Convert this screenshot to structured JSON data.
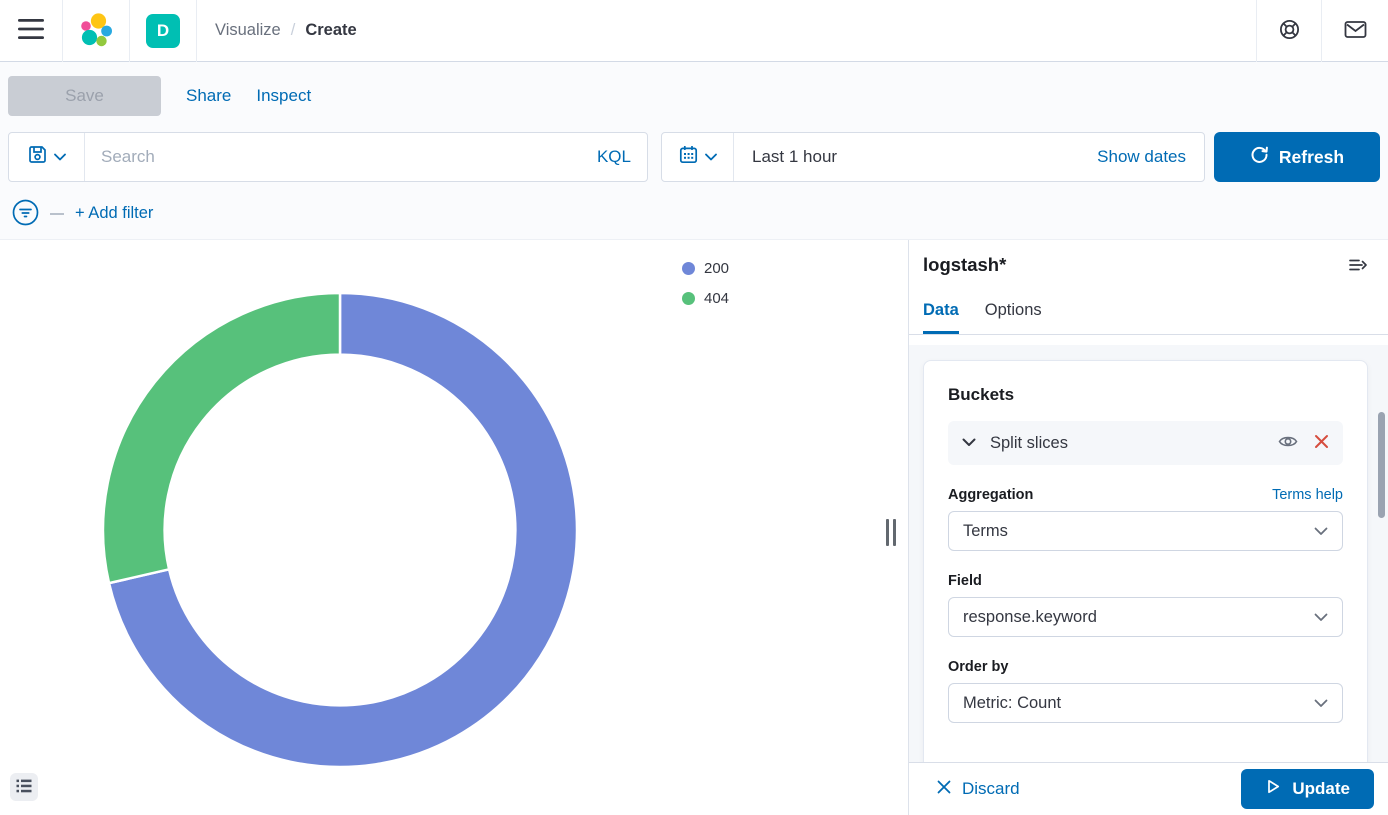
{
  "topnav": {
    "breadcrumb": {
      "parent": "Visualize",
      "separator": "/",
      "current": "Create"
    },
    "space_badge": "D"
  },
  "toolbar": {
    "save_label": "Save",
    "share_label": "Share",
    "inspect_label": "Inspect"
  },
  "query": {
    "placeholder": "Search",
    "language": "KQL"
  },
  "time_picker": {
    "value": "Last 1 hour",
    "show_dates_label": "Show dates",
    "refresh_label": "Refresh"
  },
  "filter_bar": {
    "add_filter_label": "+ Add filter"
  },
  "chart_data": {
    "type": "pie",
    "variant": "donut",
    "categories": [
      "200",
      "404"
    ],
    "values_pct": [
      71.4,
      28.6
    ],
    "colors": [
      "#6f87d8",
      "#57c17b"
    ],
    "inner_radius_ratio": 0.74,
    "start_angle_deg": 0,
    "direction": "clockwise",
    "legend_position": "top-right"
  },
  "side_panel": {
    "index_pattern": "logstash*",
    "tabs": {
      "data": "Data",
      "options": "Options",
      "active": "Data"
    },
    "buckets": {
      "heading": "Buckets",
      "split_slices_label": "Split slices",
      "aggregation_label": "Aggregation",
      "terms_help_label": "Terms help",
      "aggregation_value": "Terms",
      "field_label": "Field",
      "field_value": "response.keyword",
      "order_by_label": "Order by",
      "order_by_value": "Metric: Count"
    },
    "footer": {
      "discard_label": "Discard",
      "update_label": "Update"
    }
  },
  "colors": {
    "primary": "#006BB4",
    "text": "#343741",
    "danger": "#D64D3E",
    "badge_teal": "#00BFB3",
    "slice_200": "#6f87d8",
    "slice_404": "#57c17b"
  }
}
